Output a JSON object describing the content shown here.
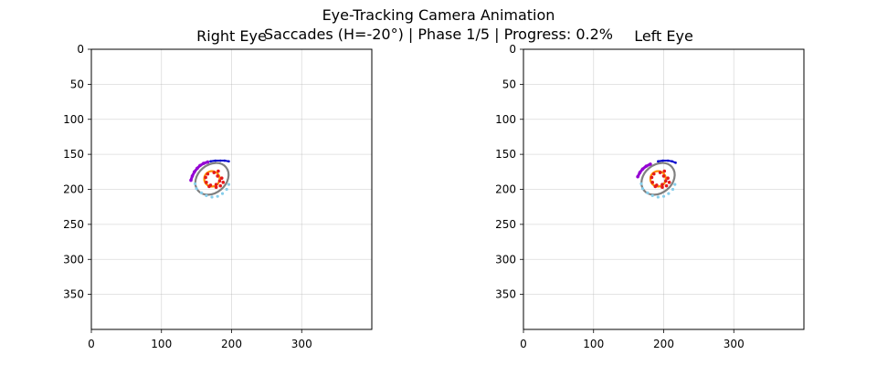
{
  "figure": {
    "title_line1": "Eye-Tracking Camera Animation",
    "title_line2": "Saccades (H=-20°) | Phase 1/5 | Progress: 0.2%"
  },
  "chart_data": [
    {
      "type": "scatter",
      "title": "Right Eye",
      "xlim": [
        0,
        400
      ],
      "ylim": [
        400,
        0
      ],
      "y_inverted": true,
      "xticks": [
        0,
        100,
        200,
        300
      ],
      "yticks": [
        0,
        50,
        100,
        150,
        200,
        250,
        300,
        350
      ],
      "grid": true,
      "colors": {
        "sclera_outline": "#808080",
        "lower_lid_points": "#87ceeb",
        "upper_lid_blue": "#0000cd",
        "upper_lid_purple": "#9400d3",
        "iris_outline": "#ff8c00",
        "pupil_glints": "#e41a1c"
      },
      "eye_center": [
        170,
        185
      ],
      "sclera": {
        "cx": 172,
        "cy": 185,
        "rx": 26,
        "ry": 20,
        "tilt_deg": -40
      },
      "upper_lid_blue": [
        [
          170,
          160
        ],
        [
          177,
          159
        ],
        [
          184,
          159
        ],
        [
          190,
          159
        ],
        [
          196,
          160
        ]
      ],
      "upper_lid_purple": [
        [
          142,
          187
        ],
        [
          144,
          181
        ],
        [
          147,
          175
        ],
        [
          151,
          170
        ],
        [
          155,
          166
        ],
        [
          160,
          163
        ],
        [
          166,
          161
        ]
      ],
      "lower_lid_points": [
        [
          150,
          199
        ],
        [
          157,
          205
        ],
        [
          164,
          209
        ],
        [
          172,
          211
        ],
        [
          180,
          210
        ],
        [
          187,
          206
        ],
        [
          193,
          200
        ],
        [
          148,
          192
        ],
        [
          196,
          193
        ]
      ],
      "iris": {
        "cx": 172,
        "cy": 185,
        "r": 11
      },
      "pupil_points": [
        [
          166,
          178
        ],
        [
          175,
          176
        ],
        [
          180,
          181
        ],
        [
          183,
          188
        ],
        [
          178,
          193
        ],
        [
          170,
          194
        ],
        [
          164,
          190
        ],
        [
          163,
          183
        ],
        [
          186,
          184
        ],
        [
          188,
          190
        ],
        [
          184,
          195
        ],
        [
          178,
          197
        ],
        [
          168,
          196
        ],
        [
          181,
          174
        ]
      ]
    },
    {
      "type": "scatter",
      "title": "Left Eye",
      "xlim": [
        0,
        400
      ],
      "ylim": [
        400,
        0
      ],
      "y_inverted": true,
      "xticks": [
        0,
        100,
        200,
        300
      ],
      "yticks": [
        0,
        50,
        100,
        150,
        200,
        250,
        300,
        350
      ],
      "grid": true,
      "colors": {
        "sclera_outline": "#808080",
        "lower_lid_points": "#87ceeb",
        "upper_lid_blue": "#0000cd",
        "upper_lid_purple": "#9400d3",
        "iris_outline": "#ff8c00",
        "pupil_glints": "#e41a1c"
      },
      "eye_center": [
        190,
        185
      ],
      "sclera": {
        "cx": 192,
        "cy": 185,
        "rx": 26,
        "ry": 20,
        "tilt_deg": -40
      },
      "upper_lid_blue": [
        [
          192,
          160
        ],
        [
          199,
          159
        ],
        [
          206,
          159
        ],
        [
          212,
          160
        ],
        [
          217,
          162
        ]
      ],
      "upper_lid_purple": [
        [
          163,
          182
        ],
        [
          166,
          176
        ],
        [
          170,
          171
        ],
        [
          175,
          167
        ],
        [
          181,
          164
        ]
      ],
      "lower_lid_points": [
        [
          170,
          199
        ],
        [
          177,
          205
        ],
        [
          184,
          209
        ],
        [
          192,
          211
        ],
        [
          200,
          210
        ],
        [
          207,
          206
        ],
        [
          213,
          200
        ],
        [
          168,
          192
        ],
        [
          216,
          193
        ]
      ],
      "iris": {
        "cx": 192,
        "cy": 185,
        "r": 11
      },
      "pupil_points": [
        [
          186,
          178
        ],
        [
          195,
          176
        ],
        [
          200,
          181
        ],
        [
          203,
          188
        ],
        [
          198,
          193
        ],
        [
          190,
          194
        ],
        [
          184,
          190
        ],
        [
          183,
          183
        ],
        [
          206,
          184
        ],
        [
          208,
          190
        ],
        [
          204,
          195
        ],
        [
          198,
          197
        ],
        [
          188,
          196
        ],
        [
          201,
          174
        ]
      ]
    }
  ]
}
